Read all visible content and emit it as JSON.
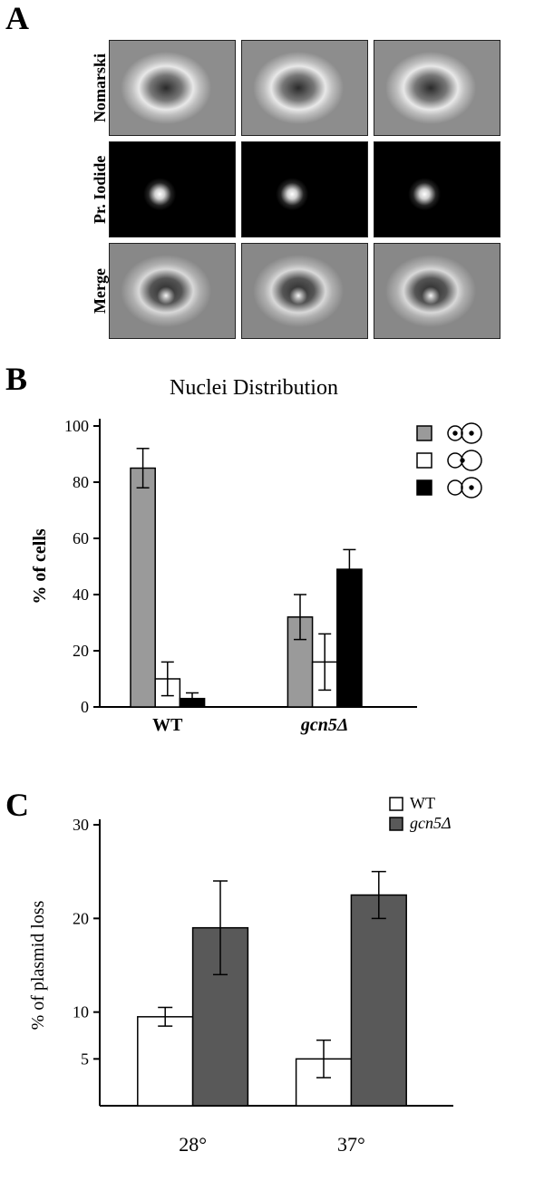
{
  "panelA": {
    "label": "A",
    "row_labels": [
      "Nomarski",
      "Pr. Iodide",
      "Merge"
    ],
    "label_fontsize": 18
  },
  "panelB": {
    "label": "B",
    "title": "Nuclei Distribution",
    "title_fontsize": 24,
    "ylabel": "% of cells",
    "label_fontsize": 20,
    "xlim": [
      0,
      10
    ],
    "ylim": [
      0,
      100
    ],
    "yticks": [
      0,
      20,
      40,
      60,
      80,
      100
    ],
    "categories": [
      "WT",
      "gcn5Δ"
    ],
    "category_italic": [
      false,
      true
    ],
    "series": [
      {
        "key": "separated",
        "fill": "#9a9a9a",
        "stroke": "#000000"
      },
      {
        "key": "neck",
        "fill": "#ffffff",
        "stroke": "#000000"
      },
      {
        "key": "single",
        "fill": "#000000",
        "stroke": "#000000"
      }
    ],
    "data": {
      "WT": {
        "separated": 85,
        "neck": 10,
        "single": 3
      },
      "gcn5Δ": {
        "separated": 32,
        "neck": 16,
        "single": 49
      }
    },
    "errors": {
      "WT": {
        "separated": 7,
        "neck": 6,
        "single": 2
      },
      "gcn5Δ": {
        "separated": 8,
        "neck": 10,
        "single": 7
      }
    },
    "bar_width": 0.8,
    "axis_color": "#000000",
    "background_color": "#ffffff",
    "legend_icons": [
      "two-sep",
      "neck",
      "one-bud"
    ],
    "legend_swatch_size": 16
  },
  "panelC": {
    "label": "C",
    "ylabel": "% of plasmid loss",
    "label_fontsize": 20,
    "categories": [
      "28°",
      "37°"
    ],
    "series": [
      {
        "key": "WT",
        "label": "WT",
        "fill": "#ffffff",
        "stroke": "#000000",
        "italic": false
      },
      {
        "key": "gcn5D",
        "label": "gcn5Δ",
        "fill": "#595959",
        "stroke": "#000000",
        "italic": true
      }
    ],
    "data": {
      "28°": {
        "WT": 9.5,
        "gcn5D": 19.0
      },
      "37°": {
        "WT": 5.0,
        "gcn5D": 22.5
      }
    },
    "errors": {
      "28°": {
        "WT": 1.0,
        "gcn5D": 5.0
      },
      "37°": {
        "WT": 2.0,
        "gcn5D": 2.5
      }
    },
    "ylim": [
      0,
      30
    ],
    "yticks": [
      5,
      10,
      20,
      30
    ],
    "bar_width": 1.6,
    "axis_color": "#000000",
    "background_color": "#ffffff",
    "tick_fontsize": 18,
    "legend_swatch_size": 14
  }
}
